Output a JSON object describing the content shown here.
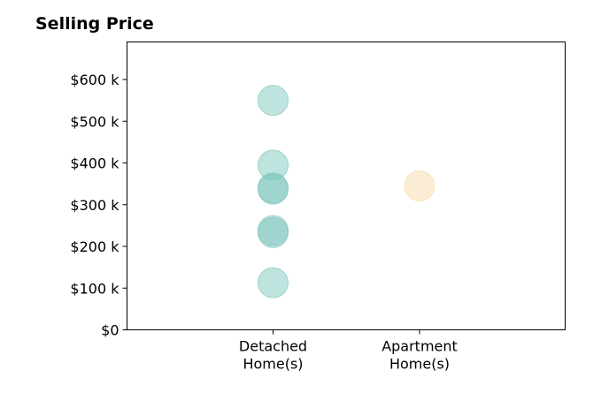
{
  "chart_data": {
    "type": "scatter",
    "title": "Selling Price",
    "xlabel": "",
    "ylabel": "",
    "categories": [
      "Detached\nHome(s)",
      "Apartment\nHome(s)"
    ],
    "y_ticks": [
      0,
      100000,
      200000,
      300000,
      400000,
      500000,
      600000
    ],
    "y_tick_labels": [
      "$0",
      "$100 k",
      "$200 k",
      "$300 k",
      "$400 k",
      "$500 k",
      "$600 k"
    ],
    "ylim": [
      0,
      690000
    ],
    "grid": false,
    "series": [
      {
        "category": "Detached\nHome(s)",
        "color": "#80c7bd",
        "values": [
          550000,
          395000,
          340000,
          337000,
          238000,
          233000,
          113000
        ]
      },
      {
        "category": "Apartment\nHome(s)",
        "color": "#f5dca8",
        "values": [
          345000
        ]
      }
    ]
  }
}
